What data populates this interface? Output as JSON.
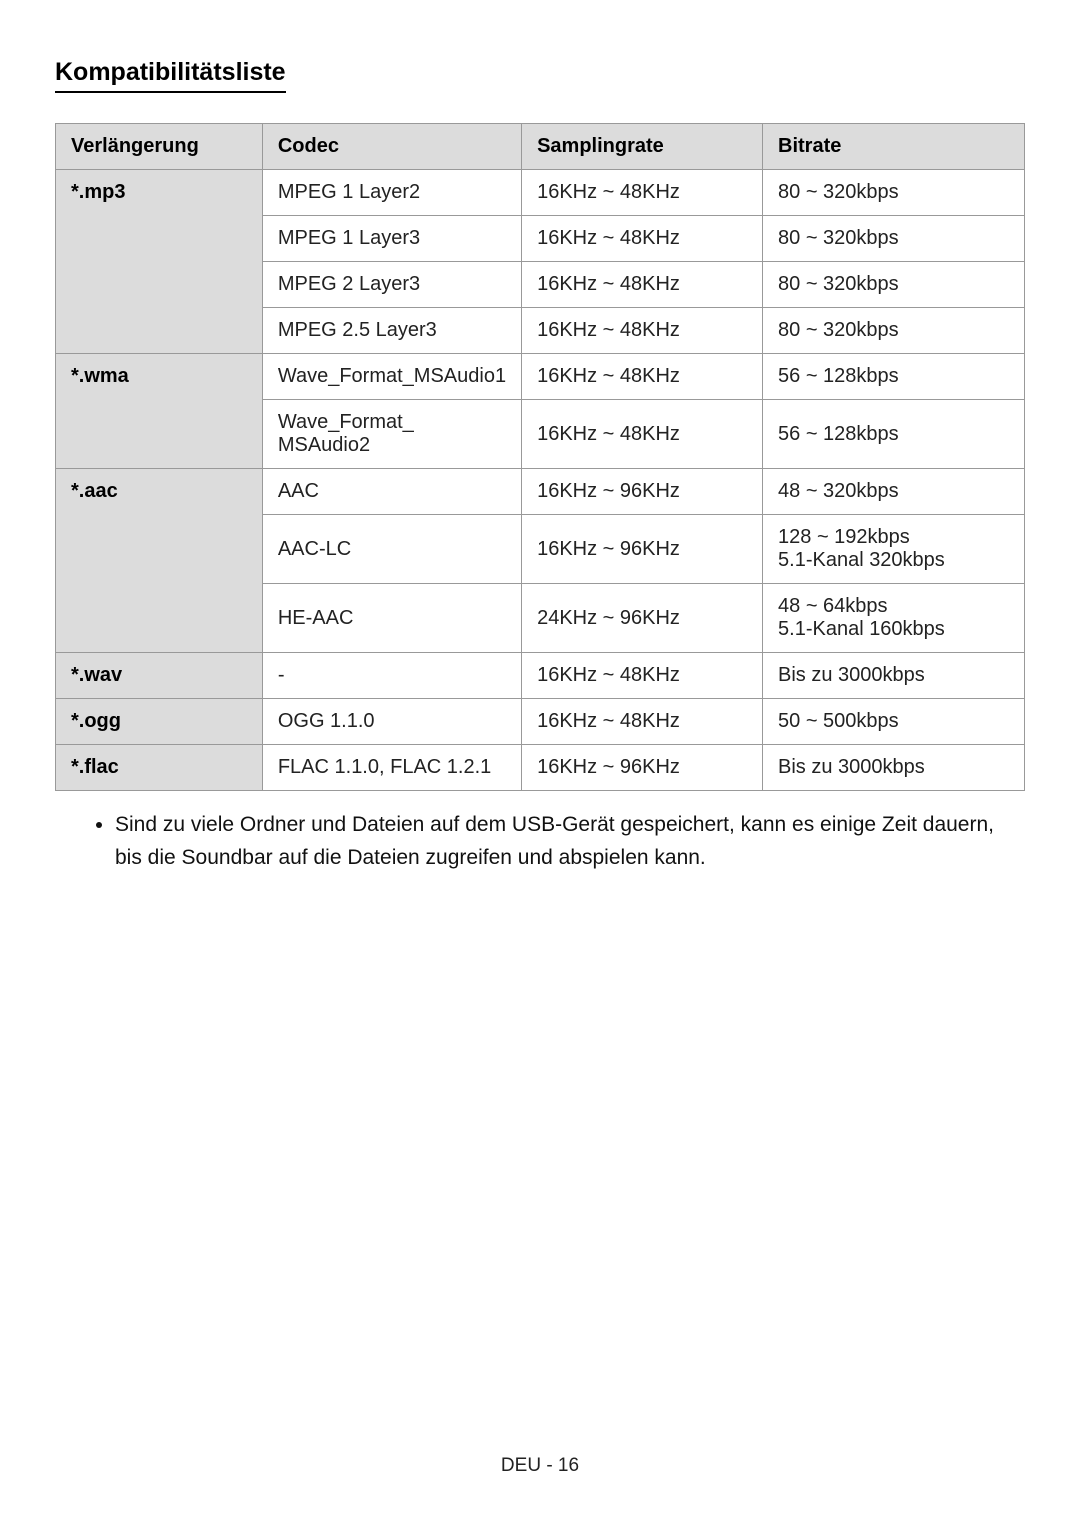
{
  "heading": "Kompatibilitätsliste",
  "table": {
    "headers": {
      "ext": "Verlängerung",
      "codec": "Codec",
      "sample": "Samplingrate",
      "bitrate": "Bitrate"
    },
    "rows": [
      {
        "ext": "*.mp3",
        "ext_rowspan": 4,
        "codec": "MPEG 1 Layer2",
        "sample": "16KHz ~ 48KHz",
        "bitrate": "80 ~ 320kbps"
      },
      {
        "codec": "MPEG 1 Layer3",
        "sample": "16KHz ~ 48KHz",
        "bitrate": "80 ~ 320kbps"
      },
      {
        "codec": "MPEG 2 Layer3",
        "sample": "16KHz ~ 48KHz",
        "bitrate": "80 ~ 320kbps"
      },
      {
        "codec": "MPEG 2.5 Layer3",
        "sample": "16KHz ~ 48KHz",
        "bitrate": "80 ~ 320kbps"
      },
      {
        "ext": "*.wma",
        "ext_rowspan": 2,
        "codec": "Wave_Format_MSAudio1",
        "sample": "16KHz ~ 48KHz",
        "bitrate": "56 ~ 128kbps"
      },
      {
        "codec": "Wave_Format_\nMSAudio2",
        "sample": "16KHz ~ 48KHz",
        "bitrate": "56 ~ 128kbps"
      },
      {
        "ext": "*.aac",
        "ext_rowspan": 3,
        "codec": "AAC",
        "sample": "16KHz ~ 96KHz",
        "bitrate": "48 ~ 320kbps"
      },
      {
        "codec": "AAC-LC",
        "sample": "16KHz ~ 96KHz",
        "bitrate": "128 ~ 192kbps\n5.1-Kanal 320kbps"
      },
      {
        "codec": "HE-AAC",
        "sample": "24KHz ~ 96KHz",
        "bitrate": "48 ~ 64kbps\n5.1-Kanal 160kbps"
      },
      {
        "ext": "*.wav",
        "ext_rowspan": 1,
        "codec": "-",
        "sample": "16KHz ~ 48KHz",
        "bitrate": "Bis zu 3000kbps"
      },
      {
        "ext": "*.ogg",
        "ext_rowspan": 1,
        "codec": "OGG 1.1.0",
        "sample": "16KHz ~ 48KHz",
        "bitrate": "50 ~ 500kbps"
      },
      {
        "ext": "*.flac",
        "ext_rowspan": 1,
        "codec": "FLAC 1.1.0, FLAC 1.2.1",
        "sample": "16KHz ~ 96KHz",
        "bitrate": "Bis zu 3000kbps"
      }
    ]
  },
  "note": "Sind zu viele Ordner und Dateien auf dem USB-Gerät gespeichert, kann es einige Zeit dauern, bis die Soundbar auf die Dateien zugreifen und abspielen kann.",
  "footer": "DEU - 16"
}
